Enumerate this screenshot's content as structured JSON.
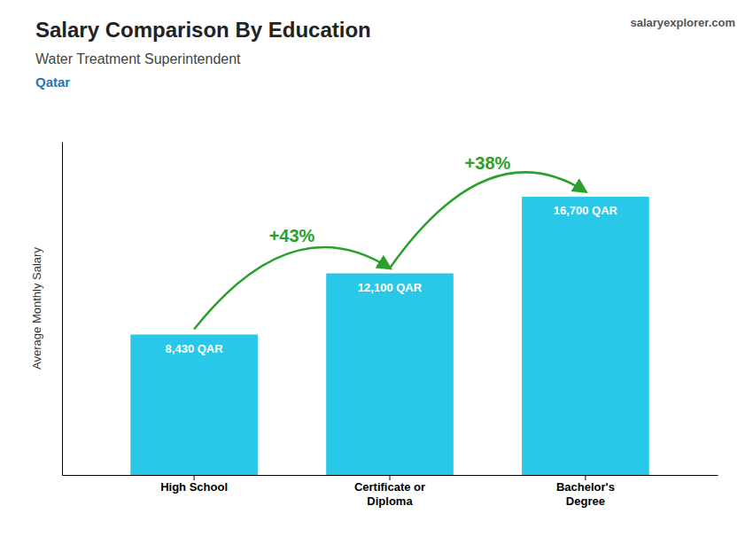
{
  "chart_data": {
    "type": "bar",
    "title": "Salary Comparison By Education",
    "subtitle": "Water Treatment Superintendent",
    "country": "Qatar",
    "source": "salaryexplorer.com",
    "categories": [
      "High School",
      "Certificate or\nDiploma",
      "Bachelor's\nDegree"
    ],
    "values": [
      8430,
      12100,
      16700
    ],
    "value_labels": [
      "8,430 QAR",
      "12,100 QAR",
      "16,700 QAR"
    ],
    "data_labels": true,
    "color": "#29c8e8",
    "ylim": [
      0,
      20000
    ],
    "ylabel": "Average Monthly Salary",
    "tick_labels": "x",
    "grid": false,
    "annotations": [
      "+43%",
      "+38%"
    ]
  }
}
